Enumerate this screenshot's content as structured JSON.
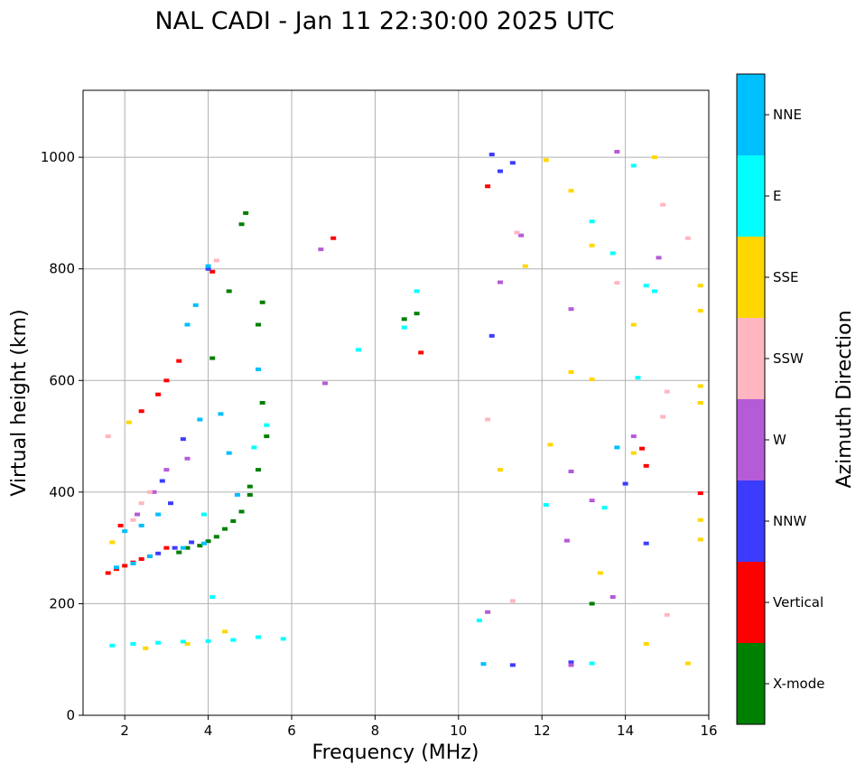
{
  "chart_data": {
    "type": "scatter",
    "title": "NAL CADI - Jan 11 22:30:00 2025 UTC",
    "xlabel": "Frequency (MHz)",
    "ylabel": "Virtual height (km)",
    "xlim": [
      1,
      16
    ],
    "ylim": [
      0,
      1120
    ],
    "xticks": [
      2,
      4,
      6,
      8,
      10,
      12,
      14,
      16
    ],
    "yticks": [
      0,
      200,
      400,
      600,
      800,
      1000
    ],
    "grid": true,
    "colorbar": {
      "label": "Azimuth Direction",
      "categories": [
        {
          "name": "X-mode",
          "color": "#008000"
        },
        {
          "name": "Vertical",
          "color": "#ff0000"
        },
        {
          "name": "NNW",
          "color": "#3c3cff"
        },
        {
          "name": "W",
          "color": "#b65bd7"
        },
        {
          "name": "SSW",
          "color": "#ffb6c1"
        },
        {
          "name": "SSE",
          "color": "#ffd700"
        },
        {
          "name": "E",
          "color": "#00ffff"
        },
        {
          "name": "NNE",
          "color": "#00bfff"
        }
      ]
    },
    "series": [
      {
        "name": "X-mode",
        "points": [
          [
            3.3,
            292
          ],
          [
            3.5,
            300
          ],
          [
            3.8,
            304
          ],
          [
            4.0,
            312
          ],
          [
            4.2,
            320
          ],
          [
            4.4,
            334
          ],
          [
            4.6,
            348
          ],
          [
            4.8,
            365
          ],
          [
            5.0,
            395
          ],
          [
            5.2,
            440
          ],
          [
            5.4,
            500
          ],
          [
            4.9,
            900
          ],
          [
            4.8,
            880
          ],
          [
            5.3,
            740
          ],
          [
            5.2,
            700
          ],
          [
            4.1,
            640
          ],
          [
            4.5,
            760
          ],
          [
            8.7,
            710
          ],
          [
            9.0,
            720
          ],
          [
            13.2,
            200
          ],
          [
            5.0,
            410
          ],
          [
            5.3,
            560
          ]
        ]
      },
      {
        "name": "Vertical",
        "points": [
          [
            1.6,
            255
          ],
          [
            1.8,
            262
          ],
          [
            2.0,
            268
          ],
          [
            2.2,
            274
          ],
          [
            2.4,
            280
          ],
          [
            2.6,
            285
          ],
          [
            3.0,
            600
          ],
          [
            3.3,
            635
          ],
          [
            2.8,
            575
          ],
          [
            2.4,
            545
          ],
          [
            4.1,
            795
          ],
          [
            9.1,
            650
          ],
          [
            10.7,
            948
          ],
          [
            14.4,
            478
          ],
          [
            14.5,
            447
          ],
          [
            15.8,
            398
          ],
          [
            7.0,
            855
          ],
          [
            1.9,
            340
          ],
          [
            3.0,
            300
          ]
        ]
      },
      {
        "name": "NNW",
        "points": [
          [
            2.8,
            290
          ],
          [
            3.2,
            300
          ],
          [
            3.6,
            310
          ],
          [
            4.0,
            800
          ],
          [
            3.4,
            495
          ],
          [
            2.9,
            420
          ],
          [
            3.1,
            380
          ],
          [
            11.0,
            975
          ],
          [
            10.8,
            680
          ],
          [
            11.3,
            90
          ],
          [
            12.7,
            95
          ],
          [
            14.0,
            415
          ],
          [
            14.5,
            308
          ],
          [
            10.8,
            1005
          ],
          [
            11.3,
            990
          ]
        ]
      },
      {
        "name": "W",
        "points": [
          [
            3.0,
            440
          ],
          [
            3.5,
            460
          ],
          [
            2.7,
            400
          ],
          [
            2.3,
            360
          ],
          [
            6.7,
            835
          ],
          [
            6.8,
            595
          ],
          [
            12.7,
            728
          ],
          [
            12.7,
            437
          ],
          [
            13.2,
            385
          ],
          [
            12.6,
            313
          ],
          [
            14.8,
            820
          ],
          [
            14.2,
            500
          ],
          [
            13.7,
            212
          ],
          [
            10.7,
            185
          ],
          [
            13.8,
            1010
          ],
          [
            11.5,
            860
          ],
          [
            11.0,
            776
          ],
          [
            12.7,
            90
          ]
        ]
      },
      {
        "name": "SSW",
        "points": [
          [
            2.4,
            380
          ],
          [
            2.6,
            400
          ],
          [
            2.2,
            350
          ],
          [
            1.6,
            500
          ],
          [
            4.2,
            815
          ],
          [
            10.7,
            530
          ],
          [
            14.9,
            915
          ],
          [
            15.5,
            855
          ],
          [
            15.0,
            580
          ],
          [
            14.9,
            535
          ],
          [
            15.0,
            180
          ],
          [
            11.3,
            205
          ],
          [
            13.8,
            775
          ],
          [
            11.4,
            865
          ]
        ]
      },
      {
        "name": "SSE",
        "points": [
          [
            2.1,
            525
          ],
          [
            1.7,
            310
          ],
          [
            2.5,
            120
          ],
          [
            3.5,
            128
          ],
          [
            4.4,
            150
          ],
          [
            12.1,
            995
          ],
          [
            12.7,
            940
          ],
          [
            13.2,
            842
          ],
          [
            12.7,
            615
          ],
          [
            13.2,
            602
          ],
          [
            12.2,
            485
          ],
          [
            13.4,
            255
          ],
          [
            14.2,
            700
          ],
          [
            14.7,
            1000
          ],
          [
            15.8,
            770
          ],
          [
            15.8,
            725
          ],
          [
            15.8,
            590
          ],
          [
            15.8,
            560
          ],
          [
            15.8,
            350
          ],
          [
            15.8,
            315
          ],
          [
            15.5,
            93
          ],
          [
            14.5,
            128
          ],
          [
            11.6,
            805
          ],
          [
            11.0,
            440
          ],
          [
            14.2,
            470
          ]
        ]
      },
      {
        "name": "E",
        "points": [
          [
            1.7,
            125
          ],
          [
            2.2,
            128
          ],
          [
            2.8,
            130
          ],
          [
            3.4,
            132
          ],
          [
            4.0,
            133
          ],
          [
            4.6,
            135
          ],
          [
            5.2,
            140
          ],
          [
            5.8,
            137
          ],
          [
            9.0,
            760
          ],
          [
            8.7,
            695
          ],
          [
            7.6,
            655
          ],
          [
            13.2,
            885
          ],
          [
            13.7,
            828
          ],
          [
            14.2,
            985
          ],
          [
            14.5,
            770
          ],
          [
            14.7,
            760
          ],
          [
            14.3,
            605
          ],
          [
            13.5,
            372
          ],
          [
            12.1,
            377
          ],
          [
            4.1,
            212
          ],
          [
            10.5,
            170
          ],
          [
            13.2,
            93
          ],
          [
            3.9,
            360
          ],
          [
            5.1,
            480
          ],
          [
            5.4,
            520
          ]
        ]
      },
      {
        "name": "NNE",
        "points": [
          [
            1.8,
            265
          ],
          [
            2.2,
            272
          ],
          [
            2.6,
            285
          ],
          [
            3.4,
            300
          ],
          [
            3.9,
            308
          ],
          [
            3.5,
            700
          ],
          [
            3.7,
            735
          ],
          [
            4.0,
            805
          ],
          [
            4.3,
            540
          ],
          [
            4.5,
            470
          ],
          [
            2.0,
            330
          ],
          [
            2.4,
            340
          ],
          [
            10.6,
            92
          ],
          [
            13.8,
            480
          ],
          [
            5.2,
            620
          ],
          [
            4.7,
            395
          ],
          [
            3.8,
            530
          ],
          [
            2.8,
            360
          ]
        ]
      }
    ]
  }
}
